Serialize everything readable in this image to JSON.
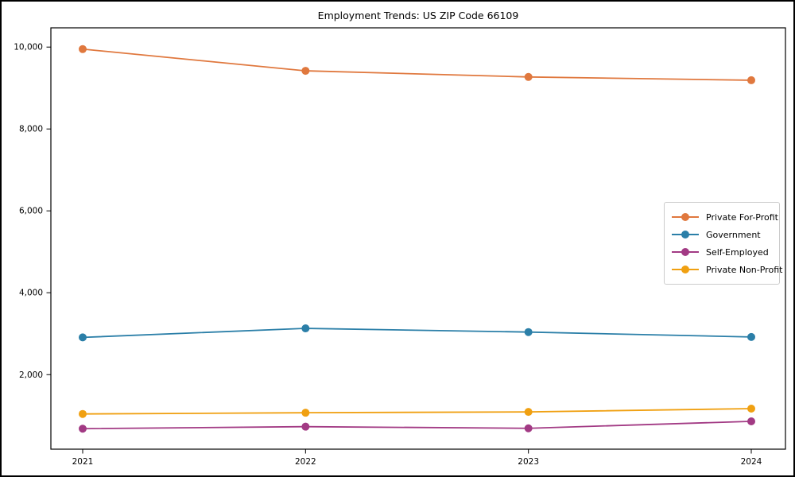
{
  "figure": {
    "background_color": "#ffffff",
    "border_color": "#000000"
  },
  "chart_data": {
    "type": "line",
    "title": "Employment Trends: US ZIP Code 66109",
    "xlabel": "",
    "ylabel": "",
    "x": [
      2021,
      2022,
      2023,
      2024
    ],
    "x_tick_labels": [
      "2021",
      "2022",
      "2023",
      "2024"
    ],
    "y_ticks": [
      2000,
      4000,
      6000,
      8000,
      10000
    ],
    "y_tick_labels": [
      "2,000",
      "4,000",
      "6,000",
      "8,000",
      "10,000"
    ],
    "ylim": [
      180,
      10470
    ],
    "grid": false,
    "legend_position": "right",
    "marker": "circle",
    "series": [
      {
        "name": "Private For-Profit",
        "color": "#e0783e",
        "values": [
          9950,
          9420,
          9270,
          9190
        ]
      },
      {
        "name": "Government",
        "color": "#2b7fa8",
        "values": [
          2910,
          3130,
          3040,
          2920
        ]
      },
      {
        "name": "Self-Employed",
        "color": "#a23a84",
        "values": [
          680,
          730,
          690,
          860
        ]
      },
      {
        "name": "Private Non-Profit",
        "color": "#f0a011",
        "values": [
          1040,
          1070,
          1090,
          1170
        ]
      }
    ]
  }
}
